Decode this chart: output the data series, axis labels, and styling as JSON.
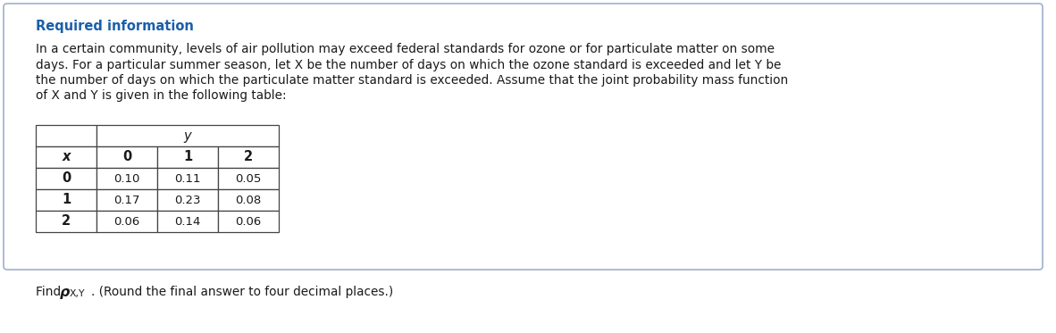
{
  "title": "Required information",
  "title_color": "#1a5fa8",
  "body_text_lines": [
    "In a certain community, levels of air pollution may exceed federal standards for ozone or for particulate matter on some",
    "days. For a particular summer season, let X be the number of days on which the ozone standard is exceeded and let Y be",
    "the number of days on which the particulate matter standard is exceeded. Assume that the joint probability mass function",
    "of X and Y is given in the following table:"
  ],
  "body_italic_words": [
    "X",
    "Y",
    "X",
    "Y",
    "X",
    "Y"
  ],
  "background_color": "#ffffff",
  "border_color": "#a0b0cc",
  "table_x_label": "x",
  "table_y_label": "y",
  "table_col_headers": [
    "0",
    "1",
    "2"
  ],
  "table_row_headers": [
    "0",
    "1",
    "2"
  ],
  "table_data": [
    [
      "0.10",
      "0.11",
      "0.05"
    ],
    [
      "0.17",
      "0.23",
      "0.08"
    ],
    [
      "0.06",
      "0.14",
      "0.06"
    ]
  ],
  "font_size_title": 10.5,
  "font_size_body": 9.8,
  "font_size_footer": 9.8,
  "font_size_table": 9.5,
  "footer_suffix": ". (Round the final answer to four decimal places.)"
}
